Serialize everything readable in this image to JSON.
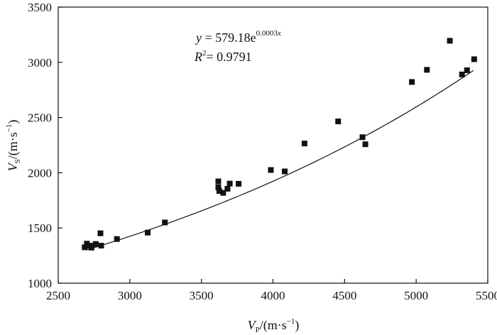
{
  "chart_data": {
    "type": "scatter",
    "title": "",
    "xlabel": {
      "var": "V",
      "sub": "P",
      "unit": "/(m·s",
      "exp": "−1",
      "close": ")"
    },
    "ylabel": {
      "var": "V",
      "sub": "S",
      "unit": "/(m·s",
      "exp": "−1",
      "close": ")"
    },
    "xlim": [
      2500,
      5500
    ],
    "ylim": [
      1000,
      3500
    ],
    "x_ticks": [
      2500,
      3000,
      3500,
      4000,
      4500,
      5000,
      5500
    ],
    "y_ticks": [
      1000,
      1500,
      2000,
      2500,
      3000,
      3500
    ],
    "grid": false,
    "legend": "none",
    "marker_color": "#111111",
    "series": [
      {
        "marker": "square",
        "points": [
          [
            2685,
            1325
          ],
          [
            2700,
            1358
          ],
          [
            2722,
            1340
          ],
          [
            2732,
            1322
          ],
          [
            2762,
            1355
          ],
          [
            2795,
            1452
          ],
          [
            2800,
            1340
          ],
          [
            2910,
            1400
          ],
          [
            3125,
            1458
          ],
          [
            3245,
            1550
          ],
          [
            3618,
            1922
          ],
          [
            3618,
            1868
          ],
          [
            3625,
            1835
          ],
          [
            3652,
            1818
          ],
          [
            3682,
            1855
          ],
          [
            3698,
            1902
          ],
          [
            3760,
            1900
          ],
          [
            3985,
            2025
          ],
          [
            4082,
            2012
          ],
          [
            4220,
            2265
          ],
          [
            4455,
            2465
          ],
          [
            4625,
            2322
          ],
          [
            4645,
            2258
          ],
          [
            4970,
            2822
          ],
          [
            5075,
            2932
          ],
          [
            5235,
            3195
          ],
          [
            5320,
            2890
          ],
          [
            5355,
            2928
          ],
          [
            5405,
            3028
          ]
        ]
      }
    ],
    "fit": {
      "a": 579.18,
      "b": 0.0003,
      "x_range": [
        2700,
        5400
      ],
      "equation": {
        "lhs": "y",
        "eq": " = 579.18e",
        "exp": "0.0003",
        "exp_var": "x"
      },
      "r2": {
        "lhs": "R",
        "sup": "2",
        "eq": "= 0.9791"
      }
    }
  }
}
